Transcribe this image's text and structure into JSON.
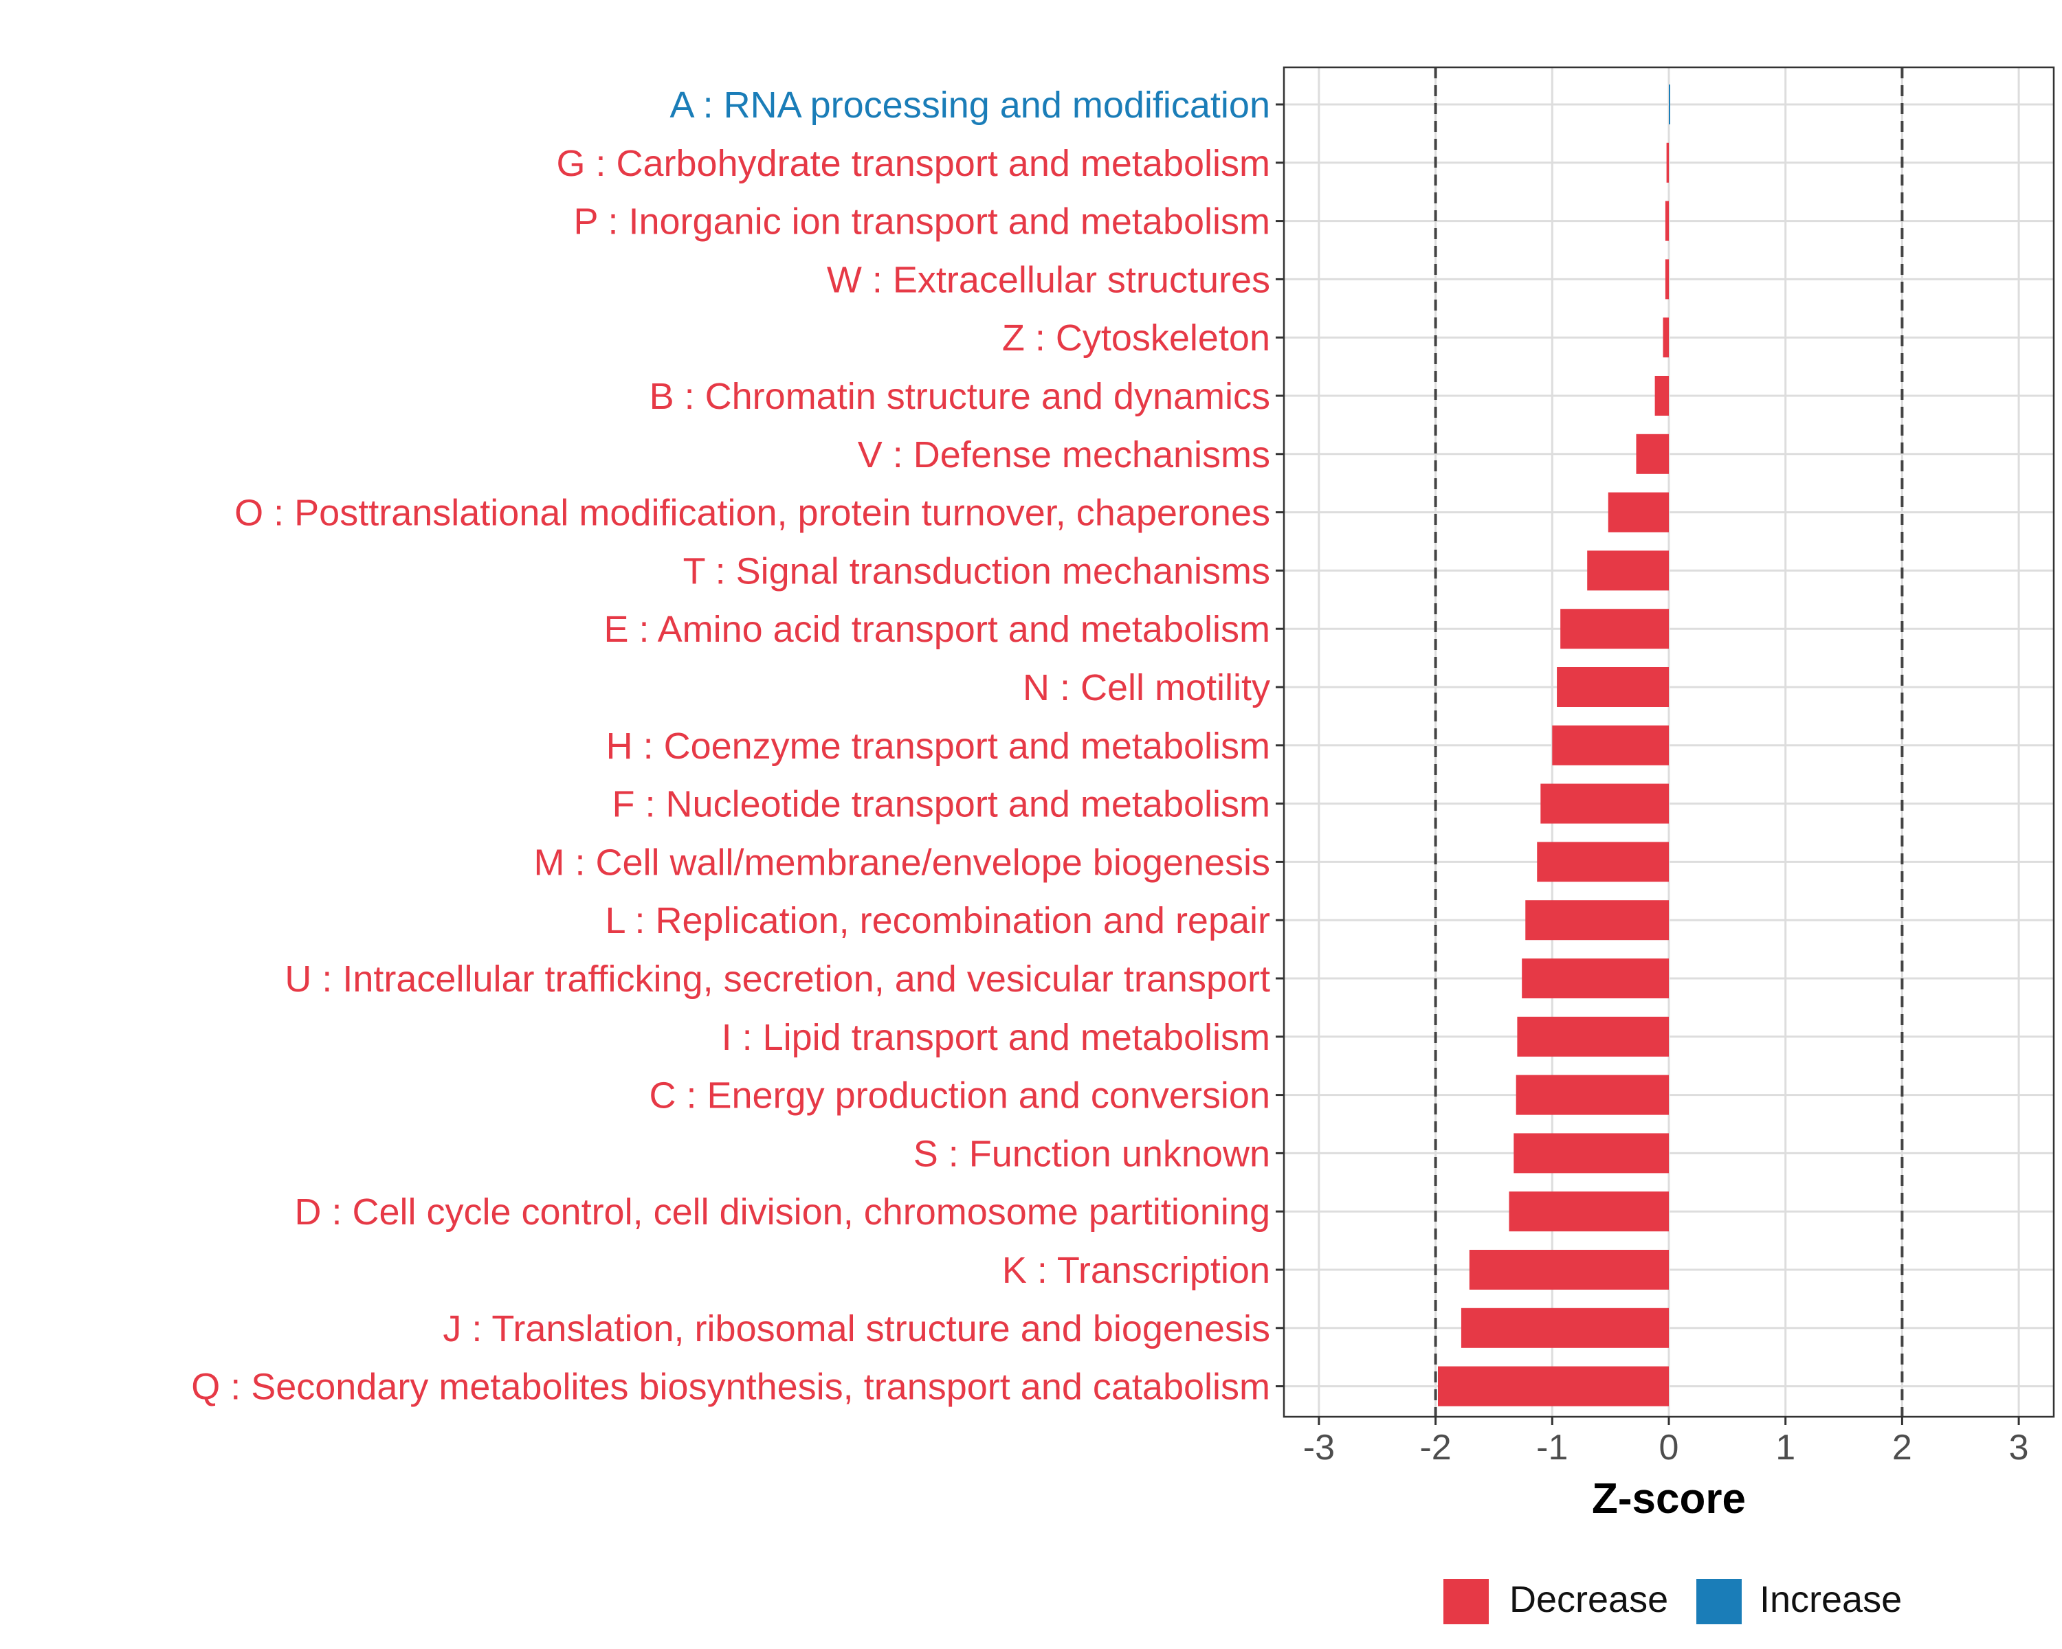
{
  "chart_data": {
    "type": "bar",
    "orientation": "horizontal",
    "title": "",
    "xlabel": "Z-score",
    "ylabel": "",
    "xlim": [
      -3.3,
      3.3
    ],
    "xticks": [
      -3,
      -2,
      -1,
      0,
      1,
      2,
      3
    ],
    "xtick_labels": [
      "-3",
      "-2",
      "-1",
      "0",
      "1",
      "2",
      "3"
    ],
    "reference_lines": [
      -2,
      2
    ],
    "grid": true,
    "categories": [
      "A : RNA processing and modification",
      "G : Carbohydrate transport and metabolism",
      "P : Inorganic ion transport and metabolism",
      "W : Extracellular structures",
      "Z : Cytoskeleton",
      "B : Chromatin structure and dynamics",
      "V : Defense mechanisms",
      "O : Posttranslational modification, protein turnover, chaperones",
      "T : Signal transduction mechanisms",
      "E : Amino acid transport and metabolism",
      "N : Cell motility",
      "H : Coenzyme transport and metabolism",
      "F : Nucleotide transport and metabolism",
      "M : Cell wall/membrane/envelope biogenesis",
      "L : Replication, recombination and repair",
      "U : Intracellular trafficking, secretion, and vesicular transport",
      "I : Lipid transport and metabolism",
      "C : Energy production and conversion",
      "S : Function unknown",
      "D : Cell cycle control, cell division, chromosome partitioning",
      "K : Transcription",
      "J : Translation, ribosomal structure and biogenesis",
      "Q : Secondary metabolites biosynthesis, transport and catabolism"
    ],
    "values": [
      0.01,
      -0.02,
      -0.03,
      -0.03,
      -0.05,
      -0.12,
      -0.28,
      -0.52,
      -0.7,
      -0.93,
      -0.96,
      -1.0,
      -1.1,
      -1.13,
      -1.23,
      -1.26,
      -1.3,
      -1.31,
      -1.33,
      -1.37,
      -1.71,
      -1.78,
      -1.98
    ],
    "direction": [
      "Increase",
      "Decrease",
      "Decrease",
      "Decrease",
      "Decrease",
      "Decrease",
      "Decrease",
      "Decrease",
      "Decrease",
      "Decrease",
      "Decrease",
      "Decrease",
      "Decrease",
      "Decrease",
      "Decrease",
      "Decrease",
      "Decrease",
      "Decrease",
      "Decrease",
      "Decrease",
      "Decrease",
      "Decrease",
      "Decrease"
    ],
    "legend": {
      "placement": "bottom",
      "entries": [
        {
          "label": "Decrease",
          "color": "#E63946"
        },
        {
          "label": "Increase",
          "color": "#1A7DB8"
        }
      ]
    }
  }
}
